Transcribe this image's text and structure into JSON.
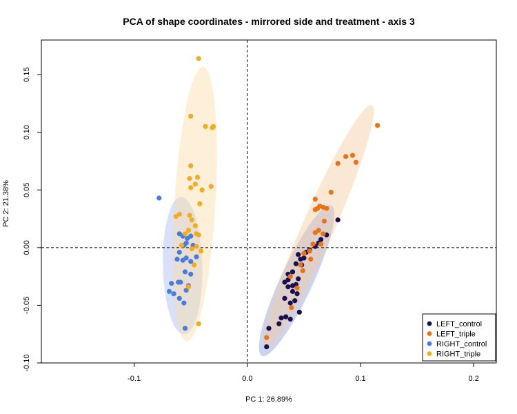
{
  "chart_data": {
    "type": "scatter",
    "title": "PCA of shape coordinates - mirrored side and treatment - axis 3",
    "xlabel": "PC 1: 26.89%",
    "ylabel": "PC 2: 21.38%",
    "xlim": [
      -0.182,
      0.22
    ],
    "ylim": [
      -0.1,
      0.18
    ],
    "xticks": [
      -0.1,
      0.0,
      0.1,
      0.2
    ],
    "xtick_labels": [
      "-0.1",
      "0.0",
      "0.1",
      "0.2"
    ],
    "yticks": [
      -0.1,
      -0.05,
      0.0,
      0.05,
      0.1,
      0.15
    ],
    "ytick_labels": [
      "-0.10",
      "-0.05",
      "0.00",
      "0.05",
      "0.10",
      "0.15"
    ],
    "reference_lines": {
      "x": 0,
      "y": 0,
      "style": "dashed"
    },
    "grid": false,
    "legend_position": "bottom-right",
    "series": [
      {
        "name": "LEFT_control",
        "color": "#1a0f4f",
        "ellipse_color": "#8fa0d8",
        "points": [
          [
            0.017,
            -0.086
          ],
          [
            0.019,
            -0.07
          ],
          [
            0.028,
            -0.066
          ],
          [
            0.03,
            -0.061
          ],
          [
            0.034,
            -0.06
          ],
          [
            0.038,
            -0.062
          ],
          [
            0.046,
            -0.056
          ],
          [
            0.033,
            -0.044
          ],
          [
            0.042,
            -0.046
          ],
          [
            0.038,
            -0.048
          ],
          [
            0.044,
            -0.04
          ],
          [
            0.036,
            -0.034
          ],
          [
            0.04,
            -0.033
          ],
          [
            0.036,
            -0.028
          ],
          [
            0.033,
            -0.03
          ],
          [
            0.043,
            -0.032
          ],
          [
            0.045,
            -0.027
          ],
          [
            0.036,
            -0.023
          ],
          [
            0.04,
            -0.021
          ],
          [
            0.043,
            -0.014
          ],
          [
            0.047,
            -0.01
          ],
          [
            0.05,
            -0.009
          ],
          [
            0.045,
            -0.006
          ],
          [
            0.052,
            -0.004
          ],
          [
            0.055,
            -0.002
          ],
          [
            0.06,
            0.001
          ],
          [
            0.063,
            0.004
          ],
          [
            0.065,
            0.007
          ],
          [
            0.07,
            0.011
          ],
          [
            0.08,
            0.024
          ],
          [
            0.04,
            -0.038
          ],
          [
            0.048,
            -0.015
          ]
        ]
      },
      {
        "name": "LEFT_triple",
        "color": "#e8731a",
        "ellipse_color": "#f5c9a0",
        "points": [
          [
            0.017,
            -0.078
          ],
          [
            0.039,
            -0.052
          ],
          [
            0.044,
            -0.035
          ],
          [
            0.038,
            -0.025
          ],
          [
            0.049,
            -0.02
          ],
          [
            0.047,
            -0.015
          ],
          [
            0.05,
            -0.005
          ],
          [
            0.055,
            -0.003
          ],
          [
            0.058,
            0.003
          ],
          [
            0.06,
            0.013
          ],
          [
            0.067,
            0.012
          ],
          [
            0.063,
            0.015
          ],
          [
            0.068,
            0.023
          ],
          [
            0.06,
            0.033
          ],
          [
            0.062,
            0.034
          ],
          [
            0.064,
            0.036
          ],
          [
            0.067,
            0.035
          ],
          [
            0.07,
            0.034
          ],
          [
            0.06,
            0.042
          ],
          [
            0.074,
            0.048
          ],
          [
            0.08,
            0.073
          ],
          [
            0.087,
            0.079
          ],
          [
            0.093,
            0.08
          ],
          [
            0.096,
            0.074
          ],
          [
            0.115,
            0.106
          ],
          [
            0.065,
            0.003
          ],
          [
            0.056,
            -0.01
          ]
        ]
      },
      {
        "name": "RIGHT_control",
        "color": "#4a7be0",
        "ellipse_color": "#a8bdf0",
        "points": [
          [
            -0.078,
            0.043
          ],
          [
            -0.069,
            -0.038
          ],
          [
            -0.067,
            -0.031
          ],
          [
            -0.065,
            -0.04
          ],
          [
            -0.06,
            -0.044
          ],
          [
            -0.061,
            -0.03
          ],
          [
            -0.059,
            -0.03
          ],
          [
            -0.055,
            -0.07
          ],
          [
            -0.056,
            -0.048
          ],
          [
            -0.054,
            -0.037
          ],
          [
            -0.052,
            -0.033
          ],
          [
            -0.055,
            -0.021
          ],
          [
            -0.05,
            -0.023
          ],
          [
            -0.057,
            -0.011
          ],
          [
            -0.054,
            -0.009
          ],
          [
            -0.05,
            -0.012
          ],
          [
            -0.06,
            -0.004
          ],
          [
            -0.056,
            0.002
          ],
          [
            -0.054,
            0.004
          ],
          [
            -0.053,
            0.008
          ],
          [
            -0.057,
            0.01
          ],
          [
            -0.06,
            0.012
          ],
          [
            -0.05,
            0.01
          ],
          [
            -0.048,
            0.002
          ],
          [
            -0.045,
            -0.008
          ],
          [
            -0.062,
            -0.01
          ]
        ]
      },
      {
        "name": "RIGHT_triple",
        "color": "#f3ac22",
        "ellipse_color": "#fbdca8",
        "points": [
          [
            -0.043,
            0.164
          ],
          [
            -0.05,
            0.114
          ],
          [
            -0.037,
            0.105
          ],
          [
            -0.031,
            0.104
          ],
          [
            -0.03,
            0.105
          ],
          [
            -0.05,
            0.071
          ],
          [
            -0.051,
            0.06
          ],
          [
            -0.044,
            0.061
          ],
          [
            -0.046,
            0.055
          ],
          [
            -0.05,
            0.052
          ],
          [
            -0.04,
            0.05
          ],
          [
            -0.032,
            0.053
          ],
          [
            -0.042,
            0.038
          ],
          [
            -0.063,
            0.027
          ],
          [
            -0.06,
            0.029
          ],
          [
            -0.051,
            0.028
          ],
          [
            -0.049,
            0.024
          ],
          [
            -0.046,
            0.019
          ],
          [
            -0.052,
            0.015
          ],
          [
            -0.045,
            0.012
          ],
          [
            -0.043,
            0.011
          ],
          [
            -0.058,
            0.002
          ],
          [
            -0.045,
            0.001
          ],
          [
            -0.041,
            -0.003
          ],
          [
            -0.047,
            -0.015
          ],
          [
            -0.052,
            -0.034
          ],
          [
            -0.043,
            -0.066
          ],
          [
            -0.049,
            -0.001
          ],
          [
            -0.055,
            0.012
          ]
        ]
      }
    ]
  }
}
